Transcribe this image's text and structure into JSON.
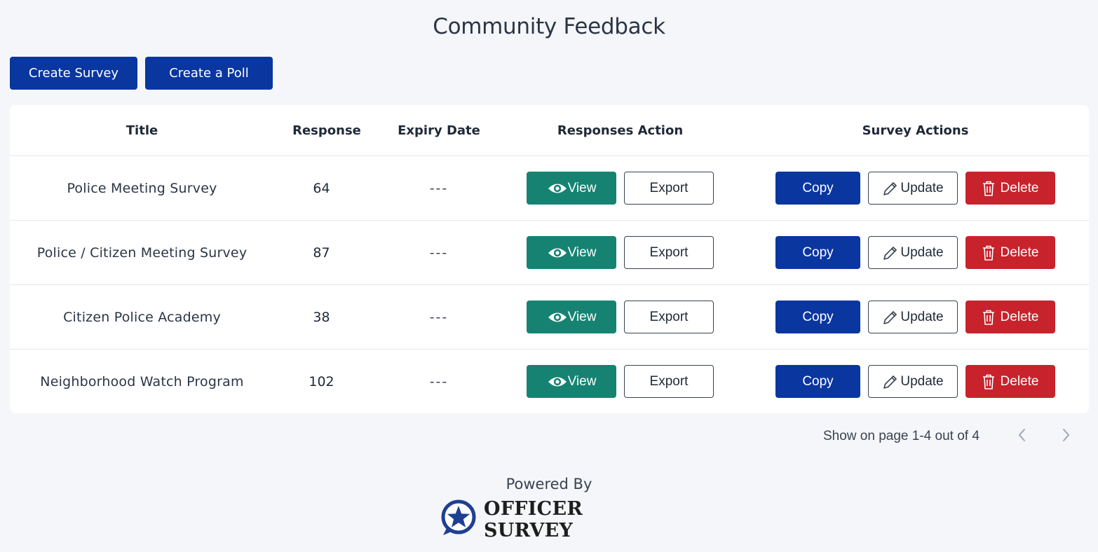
{
  "page": {
    "title": "Community Feedback"
  },
  "actions": {
    "create_survey": "Create Survey",
    "create_poll": "Create a Poll"
  },
  "table": {
    "headers": {
      "title": "Title",
      "response": "Response",
      "expiry": "Expiry Date",
      "responses_action": "Responses Action",
      "survey_actions": "Survey Actions"
    },
    "rows": [
      {
        "title": "Police Meeting Survey",
        "response": "64",
        "expiry": "---"
      },
      {
        "title": "Police / Citizen Meeting Survey",
        "response": "87",
        "expiry": "---"
      },
      {
        "title": "Citizen Police Academy",
        "response": "38",
        "expiry": "---"
      },
      {
        "title": "Neighborhood Watch Program",
        "response": "102",
        "expiry": "---"
      }
    ],
    "row_buttons": {
      "view": "View",
      "export": "Export",
      "copy": "Copy",
      "update": "Update",
      "delete": "Delete"
    }
  },
  "pagination": {
    "text": "Show on page 1-4 out of 4"
  },
  "footer": {
    "powered_by": "Powered By",
    "brand": "OFFICER SURVEY"
  },
  "colors": {
    "primary": "#0a36a0",
    "view": "#168372",
    "delete": "#c8232c",
    "background": "#f4f6f9"
  },
  "icons": {
    "view": "eye-icon",
    "update": "pencil-icon",
    "delete": "trash-icon",
    "prev": "chevron-left-icon",
    "next": "chevron-right-icon",
    "logo": "star-badge-icon"
  }
}
